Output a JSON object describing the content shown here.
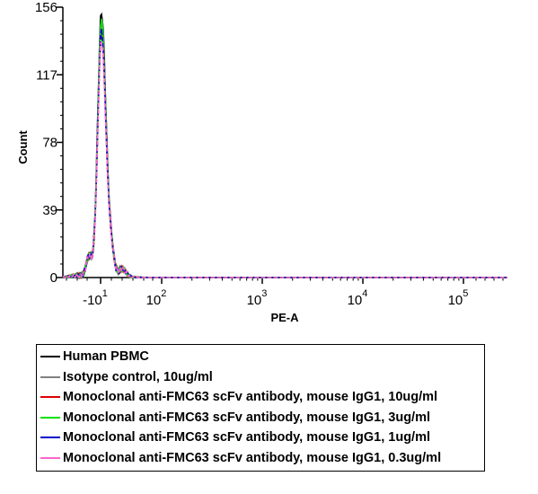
{
  "chart_data": {
    "type": "line",
    "xlabel": "PE-A",
    "ylabel": "Count",
    "x_scale": "biexponential",
    "x_tick_labels": [
      {
        "base": "-10",
        "exp": "1"
      },
      {
        "base": "10",
        "exp": "2"
      },
      {
        "base": "10",
        "exp": "3"
      },
      {
        "base": "10",
        "exp": "4"
      },
      {
        "base": "10",
        "exp": "5"
      }
    ],
    "y_ticks": [
      0,
      39,
      78,
      117,
      156
    ],
    "ylim": [
      0,
      156
    ],
    "grid": false,
    "legend_position": "bottom",
    "series": [
      {
        "name": "Human PBMC",
        "color": "#000000",
        "style": "solid",
        "peak": 153
      },
      {
        "name": "Isotype control, 10ug/ml",
        "color": "#808080",
        "style": "solid",
        "peak": 150
      },
      {
        "name": "Monoclonal anti-FMC63 scFv antibody, mouse IgG1, 10ug/ml",
        "color": "#e00000",
        "style": "dashed",
        "peak": 140
      },
      {
        "name": "Monoclonal anti-FMC63 scFv antibody, mouse IgG1, 3ug/ml",
        "color": "#00e000",
        "style": "solid",
        "peak": 147
      },
      {
        "name": "Monoclonal anti-FMC63 scFv antibody, mouse IgG1, 1ug/ml",
        "color": "#0000cc",
        "style": "dashed",
        "peak": 142
      },
      {
        "name": "Monoclonal anti-FMC63 scFv antibody, mouse IgG1, 0.3ug/ml",
        "color": "#ff66cc",
        "style": "dashed",
        "peak": 137
      }
    ]
  }
}
